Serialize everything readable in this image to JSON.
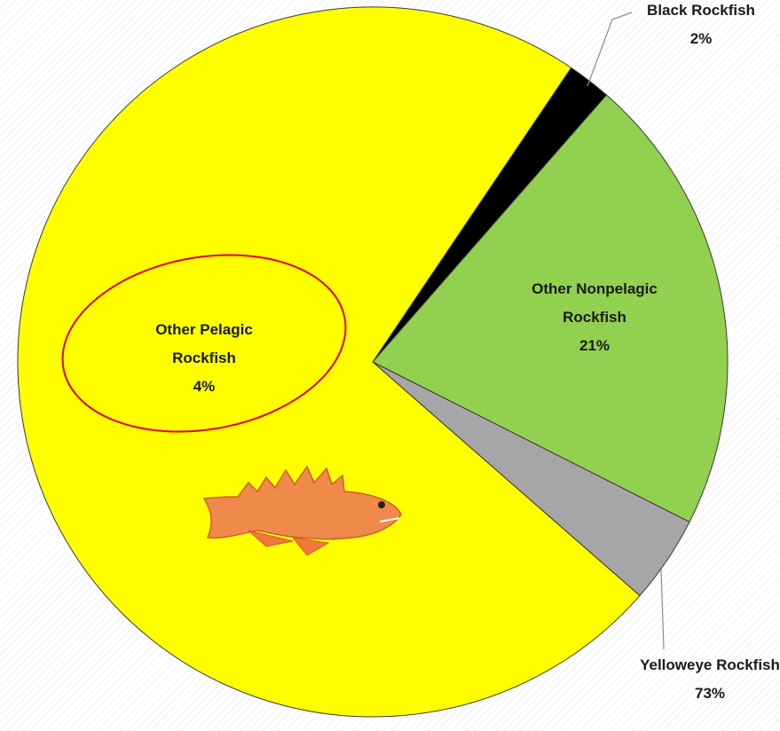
{
  "chart_data": {
    "type": "pie",
    "categories": [
      "Black Rockfish",
      "Other Nonpelagic Rockfish",
      "Other Pelagic Rockfish",
      "Yelloweye Rockfish"
    ],
    "values": [
      2,
      21,
      4,
      73
    ],
    "value_labels": [
      "2%",
      "21%",
      "4%",
      "73%"
    ],
    "colors": [
      "#000000",
      "#92d050",
      "#a6a6a6",
      "#ffff00"
    ]
  }
}
